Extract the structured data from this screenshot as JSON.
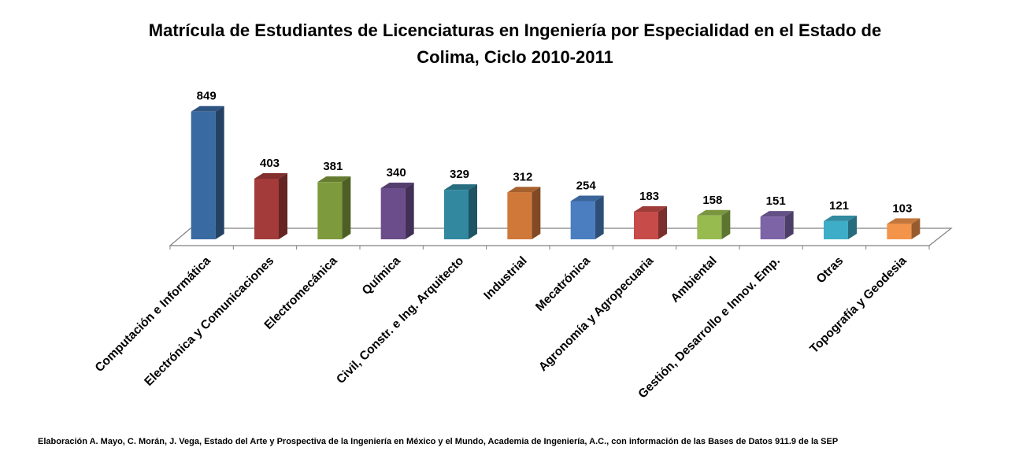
{
  "chart_data": {
    "type": "bar",
    "title_line1": "Matrícula  de Estudiantes de Licenciaturas en Ingeniería por Especialidad en el Estado de",
    "title_line2": "Colima, Ciclo 2010-2011",
    "xlabel": "",
    "ylabel": "",
    "ylim": [
      0,
      900
    ],
    "grid": false,
    "legend": "none",
    "categories": [
      "Computación e Informática",
      "Electrónica y Comunicaciones",
      "Electromecánica",
      "Química",
      "Civil, Constr. e Ing. Arquitecto",
      "Industrial",
      "Mecatrónica",
      "Agronomía y Agropecuaria",
      "Ambiental",
      "Gestión, Desarrollo e Innov. Emp.",
      "Otras",
      "Topografía y Geodesia"
    ],
    "values": [
      849,
      403,
      381,
      340,
      329,
      312,
      254,
      183,
      158,
      151,
      121,
      103
    ],
    "colors": [
      "#3a6aa2",
      "#a23b39",
      "#7d9a3c",
      "#6a4d8a",
      "#31889f",
      "#d0783a",
      "#4a7ec1",
      "#c64b49",
      "#97bb4f",
      "#7c64a6",
      "#3eaec8",
      "#f3944a"
    ]
  },
  "source_note": "Elaboración A. Mayo, C. Morán, J. Vega, Estado del Arte y Prospectiva de la Ingeniería en México y el Mundo, Academia de Ingeniería, A.C., con información de las Bases de Datos  911.9  de la SEP"
}
